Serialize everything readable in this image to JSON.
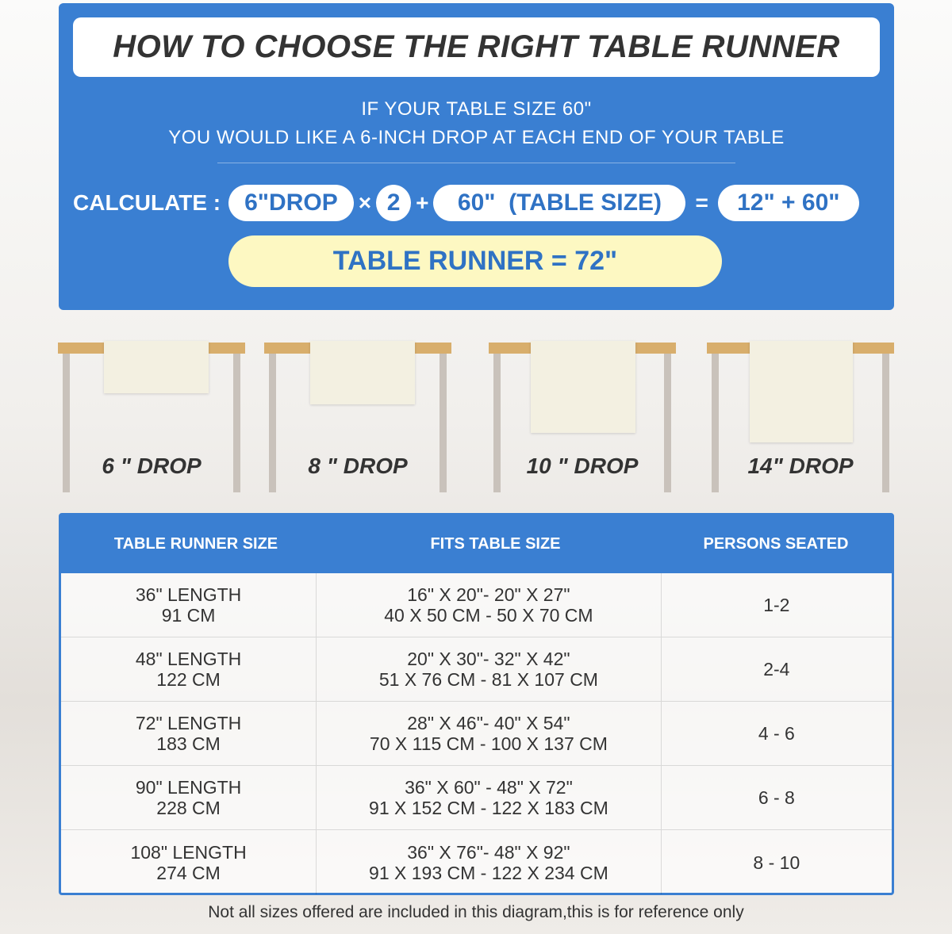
{
  "title": "HOW TO CHOOSE THE RIGHT TABLE RUNNER",
  "intro": {
    "line1": "IF YOUR TABLE SIZE 60\"",
    "line2": "YOU WOULD LIKE A 6-INCH DROP AT EACH END OF YOUR TABLE"
  },
  "calc": {
    "label": "CALCULATE :",
    "drop": "6\"DROP",
    "times": "×",
    "multiplier": "2",
    "plus": "+",
    "table": "60\"  (TABLE SIZE)",
    "equals": "=",
    "sum": "12\" + 60\"",
    "result": "TABLE RUNNER = 72\""
  },
  "drops": [
    "6 \" DROP",
    "8 \" DROP",
    "10 \" DROP",
    "14\" DROP"
  ],
  "colors": {
    "blue": "#3a7fd2",
    "yellow": "#fdf8c2",
    "tabletop": "#d8ae6c"
  },
  "table": {
    "headers": [
      "TABLE RUNNER SIZE",
      "FITS TABLE SIZE",
      "PERSONS SEATED"
    ],
    "rows": [
      {
        "size": [
          "36\" LENGTH",
          "91 CM"
        ],
        "fits": [
          "16\" X 20\"- 20\" X 27\"",
          "40 X 50 CM - 50 X 70 CM"
        ],
        "persons": "1-2"
      },
      {
        "size": [
          "48\" LENGTH",
          "122 CM"
        ],
        "fits": [
          "20\" X 30\"- 32\" X 42\"",
          "51 X 76 CM - 81 X 107 CM"
        ],
        "persons": "2-4"
      },
      {
        "size": [
          "72\" LENGTH",
          "183 CM"
        ],
        "fits": [
          "28\" X 46\"- 40\" X 54\"",
          "70 X 115 CM - 100 X 137 CM"
        ],
        "persons": "4 - 6"
      },
      {
        "size": [
          "90\" LENGTH",
          "228 CM"
        ],
        "fits": [
          "36\" X 60\" - 48\" X 72\"",
          "91 X 152 CM - 122 X 183 CM"
        ],
        "persons": "6 - 8"
      },
      {
        "size": [
          "108\" LENGTH",
          "274 CM"
        ],
        "fits": [
          "36\" X 76\"- 48\" X 92\"",
          "91 X 193 CM - 122 X 234 CM"
        ],
        "persons": "8 - 10"
      }
    ]
  },
  "footer": "Not all sizes offered are included in this diagram,this is for reference only"
}
